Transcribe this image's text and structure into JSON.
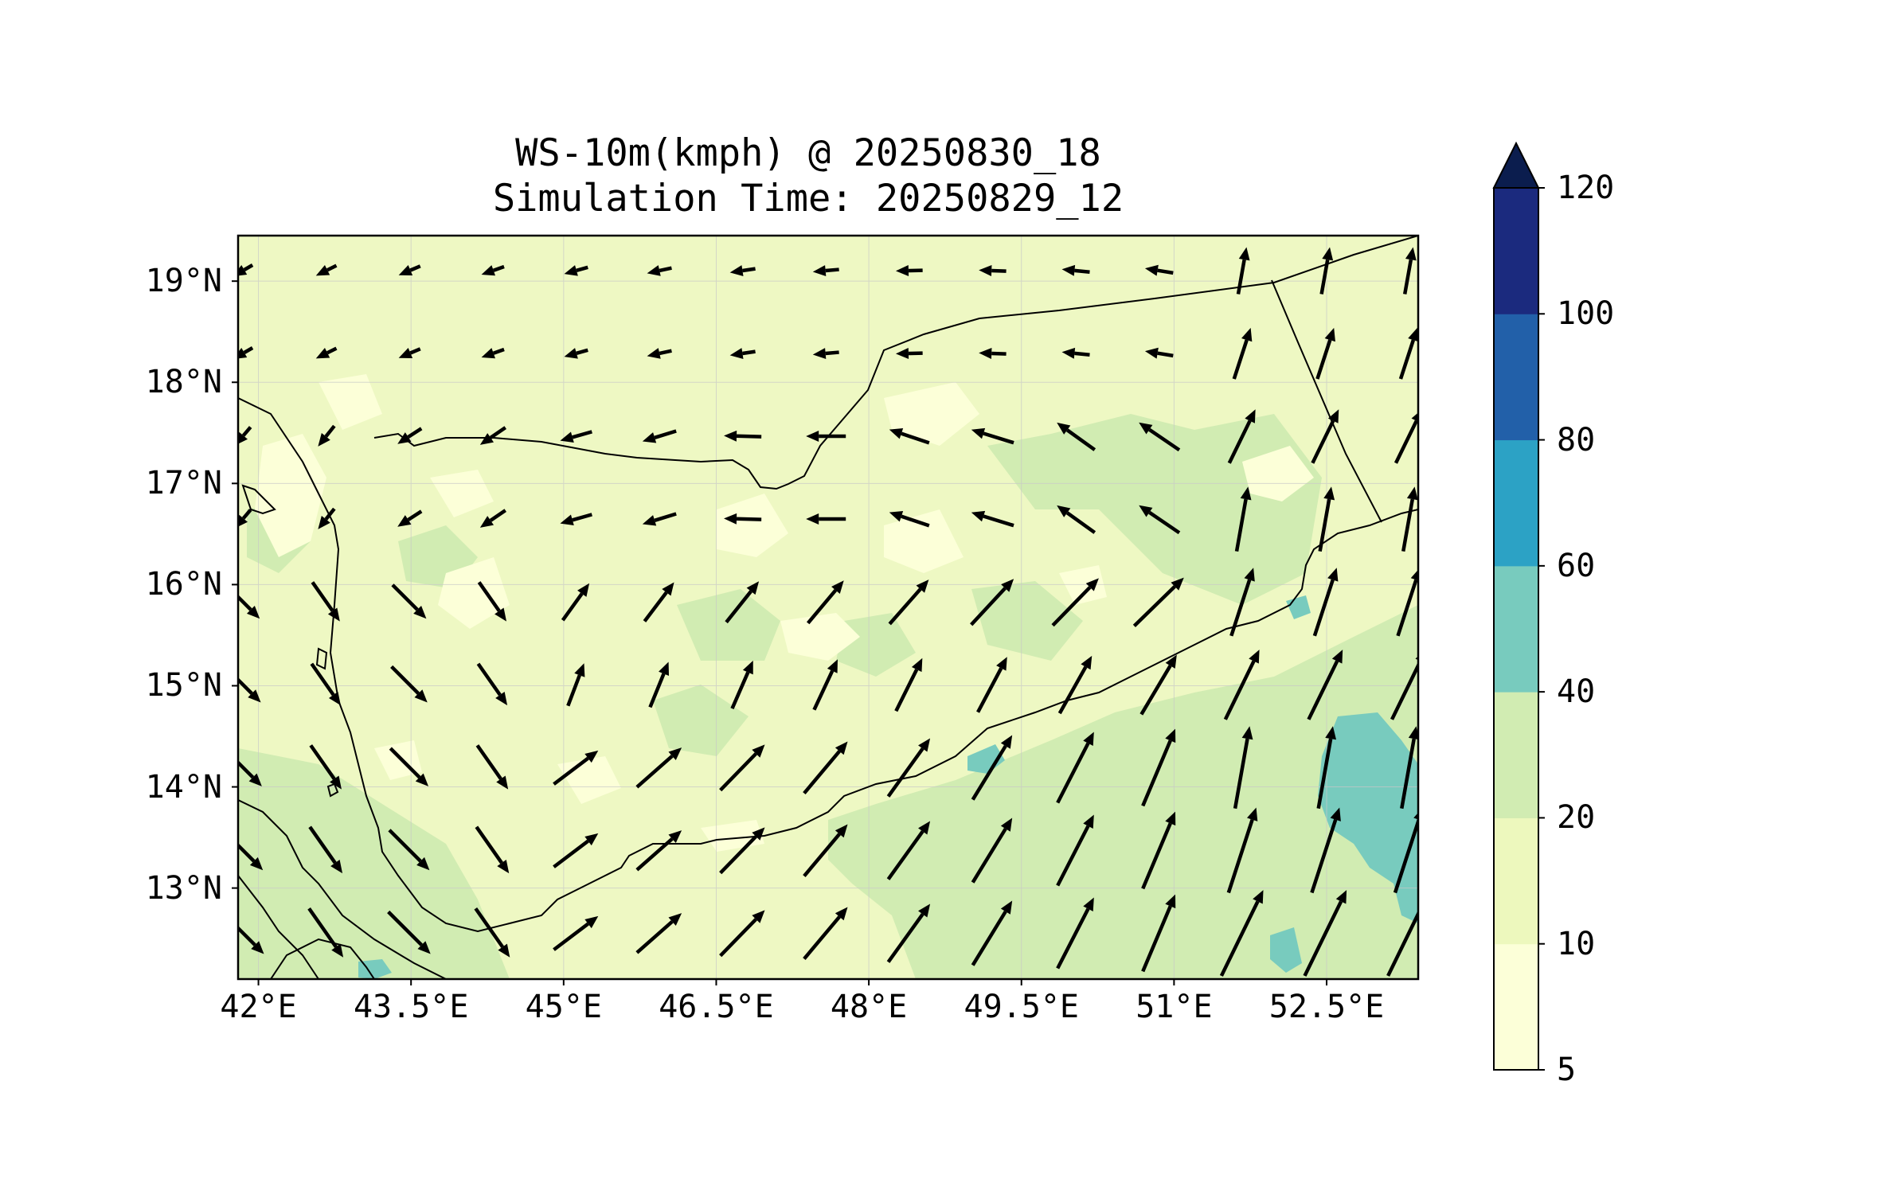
{
  "title": {
    "line1": "WS-10m(kmph) @ 20250830_18",
    "line2": "Simulation Time: 20250829_12"
  },
  "map": {
    "lon_range": [
      41.8,
      53.4
    ],
    "lat_range": [
      12.1,
      19.45
    ],
    "x_ticks": [
      {
        "value": 42.0,
        "label": "42°E"
      },
      {
        "value": 43.5,
        "label": "43.5°E"
      },
      {
        "value": 45.0,
        "label": "45°E"
      },
      {
        "value": 46.5,
        "label": "46.5°E"
      },
      {
        "value": 48.0,
        "label": "48°E"
      },
      {
        "value": 49.5,
        "label": "49.5°E"
      },
      {
        "value": 51.0,
        "label": "51°E"
      },
      {
        "value": 52.5,
        "label": "52.5°E"
      }
    ],
    "y_ticks": [
      {
        "value": 19,
        "label": "19°N"
      },
      {
        "value": 18,
        "label": "18°N"
      },
      {
        "value": 17,
        "label": "17°N"
      },
      {
        "value": 16,
        "label": "16°N"
      },
      {
        "value": 15,
        "label": "15°N"
      },
      {
        "value": 14,
        "label": "14°N"
      },
      {
        "value": 13,
        "label": "13°N"
      }
    ],
    "gridlines": true,
    "base_fill_color": "#eef8c3",
    "land_fill_color": "#f3fac9",
    "sea_fill_color": "#d3ecb2"
  },
  "colorbar": {
    "levels": [
      5,
      10,
      20,
      40,
      60,
      80,
      100,
      120
    ],
    "labels": [
      "5",
      "10",
      "20",
      "40",
      "60",
      "80",
      "100",
      "120"
    ],
    "colors": [
      "#fcffd8",
      "#edf8bd",
      "#d1ecb2",
      "#78cbbe",
      "#2ca2c5",
      "#2260a9",
      "#1b2a7e"
    ],
    "extend_color": "#0b1d4e",
    "extend": "max"
  }
}
